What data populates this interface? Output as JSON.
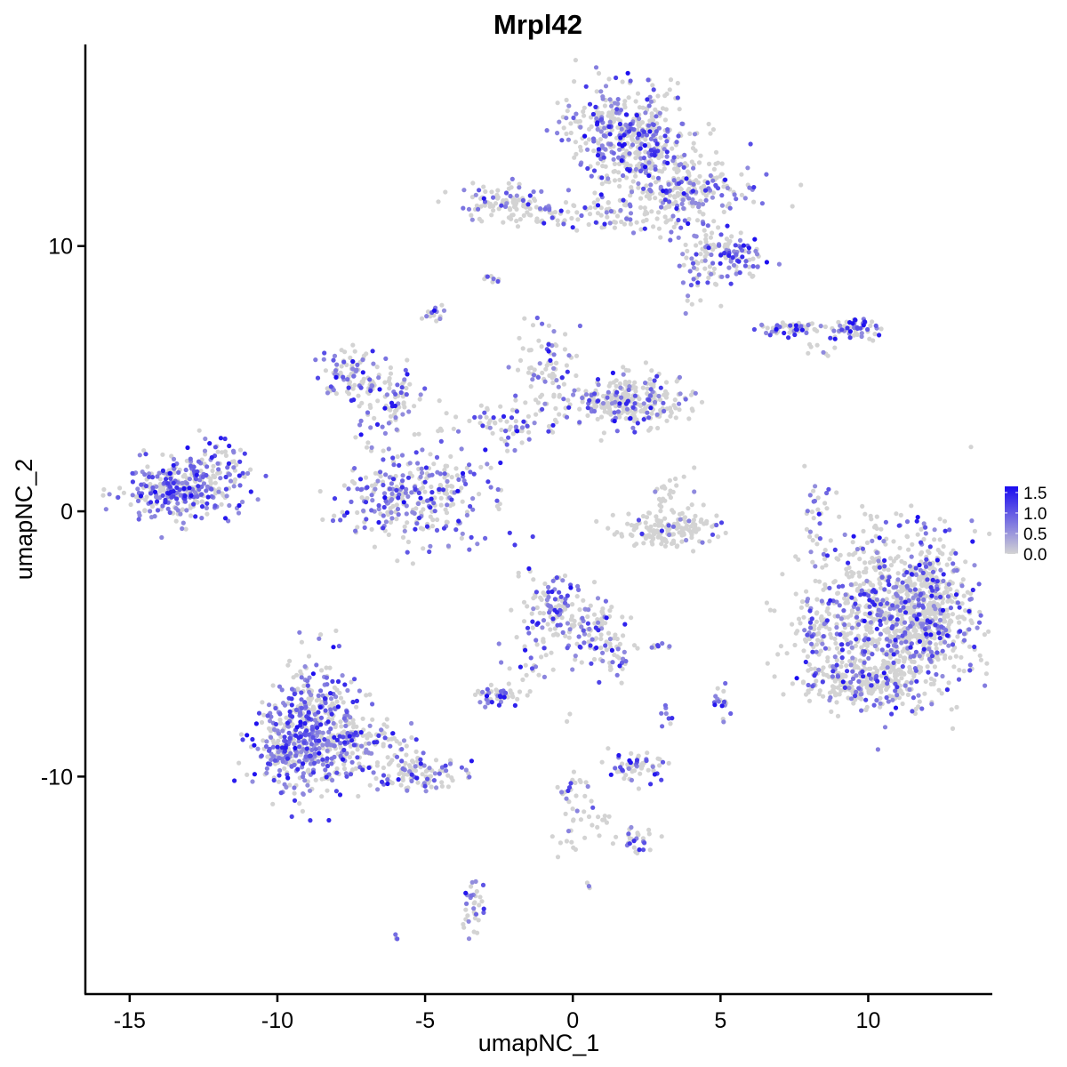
{
  "chart_data": {
    "type": "scatter",
    "title": "Mrpl42",
    "xlabel": "umapNC_1",
    "ylabel": "umapNC_2",
    "xlim": [
      -16.5,
      14.2
    ],
    "ylim": [
      -18.2,
      17.6
    ],
    "x_ticks": [
      -15,
      -10,
      -5,
      0,
      5,
      10
    ],
    "y_ticks": [
      -10,
      0,
      10
    ],
    "grid": false,
    "legend": {
      "placement": "right",
      "ticks": [
        "1.5",
        "1.0",
        "0.5",
        "0.0"
      ],
      "range": [
        0,
        1.65
      ],
      "low_color": "#d3d3d3",
      "high_color": "#1a0bf0"
    },
    "point_color_low": "#d3d3d3",
    "point_color_high": "#1a0bf0",
    "clusters": [
      {
        "cx": -13.3,
        "cy": 0.8,
        "sx": 1.0,
        "sy": 0.55,
        "n": 320,
        "expr": 0.55
      },
      {
        "cx": -11.9,
        "cy": 1.8,
        "sx": 0.5,
        "sy": 0.5,
        "n": 50,
        "expr": 0.45
      },
      {
        "cx": -8.8,
        "cy": -8.2,
        "sx": 0.8,
        "sy": 1.3,
        "n": 420,
        "expr": 0.55
      },
      {
        "cx": -9.7,
        "cy": -8.8,
        "sx": 0.6,
        "sy": 0.6,
        "n": 160,
        "expr": 0.6
      },
      {
        "cx": -7.2,
        "cy": -8.7,
        "sx": 0.9,
        "sy": 0.5,
        "n": 110,
        "expr": 0.4
      },
      {
        "cx": -5.3,
        "cy": -9.9,
        "sx": 0.8,
        "sy": 0.35,
        "n": 110,
        "expr": 0.35
      },
      {
        "cx": -7.5,
        "cy": 5.2,
        "sx": 0.5,
        "sy": 0.5,
        "n": 90,
        "expr": 0.55
      },
      {
        "cx": -6.2,
        "cy": 4.3,
        "sx": 0.7,
        "sy": 0.7,
        "n": 80,
        "expr": 0.4
      },
      {
        "cx": -5.5,
        "cy": 0.6,
        "sx": 1.3,
        "sy": 0.9,
        "n": 330,
        "expr": 0.45
      },
      {
        "cx": -1.0,
        "cy": 5.5,
        "sx": 0.5,
        "sy": 0.7,
        "n": 70,
        "expr": 0.45
      },
      {
        "cx": -1.8,
        "cy": 3.4,
        "sx": 1.0,
        "sy": 0.4,
        "n": 80,
        "expr": 0.35
      },
      {
        "cx": 1.3,
        "cy": 4.2,
        "sx": 1.2,
        "sy": 0.35,
        "n": 110,
        "expr": 0.25
      },
      {
        "cx": 2.1,
        "cy": 4.2,
        "sx": 0.8,
        "sy": 0.5,
        "n": 170,
        "expr": 0.3
      },
      {
        "cx": -4.7,
        "cy": 7.4,
        "sx": 0.15,
        "sy": 0.2,
        "n": 14,
        "expr": 0.5
      },
      {
        "cx": -2.7,
        "cy": 8.8,
        "sx": 0.15,
        "sy": 0.1,
        "n": 8,
        "expr": 0.4
      },
      {
        "cx": -2.2,
        "cy": 11.6,
        "sx": 0.8,
        "sy": 0.4,
        "n": 110,
        "expr": 0.3
      },
      {
        "cx": 1.1,
        "cy": 11.2,
        "sx": 1.0,
        "sy": 0.3,
        "n": 80,
        "expr": 0.25
      },
      {
        "cx": 1.3,
        "cy": 14.5,
        "sx": 0.9,
        "sy": 0.8,
        "n": 240,
        "expr": 0.4
      },
      {
        "cx": 2.4,
        "cy": 13.6,
        "sx": 0.9,
        "sy": 0.9,
        "n": 250,
        "expr": 0.35
      },
      {
        "cx": 3.8,
        "cy": 12.1,
        "sx": 1.1,
        "sy": 0.6,
        "n": 200,
        "expr": 0.4
      },
      {
        "cx": 5.5,
        "cy": 9.6,
        "sx": 0.45,
        "sy": 0.5,
        "n": 90,
        "expr": 0.5
      },
      {
        "cx": 4.3,
        "cy": 9.6,
        "sx": 0.4,
        "sy": 0.9,
        "n": 70,
        "expr": 0.3
      },
      {
        "cx": 7.5,
        "cy": 6.9,
        "sx": 0.6,
        "sy": 0.12,
        "n": 60,
        "expr": 0.55
      },
      {
        "cx": 9.5,
        "cy": 6.9,
        "sx": 0.45,
        "sy": 0.2,
        "n": 55,
        "expr": 0.5
      },
      {
        "cx": 8.5,
        "cy": 6.0,
        "sx": 0.3,
        "sy": 0.2,
        "n": 8,
        "expr": 0.4
      },
      {
        "cx": 3.3,
        "cy": -0.7,
        "sx": 0.9,
        "sy": 0.35,
        "n": 150,
        "expr": 0.05
      },
      {
        "cx": 3.2,
        "cy": 0.5,
        "sx": 0.4,
        "sy": 0.6,
        "n": 30,
        "expr": 0.1
      },
      {
        "cx": 8.2,
        "cy": 0.0,
        "sx": 0.25,
        "sy": 0.7,
        "n": 30,
        "expr": 0.5
      },
      {
        "cx": 10.8,
        "cy": -4.0,
        "sx": 1.4,
        "sy": 1.5,
        "n": 950,
        "expr": 0.3
      },
      {
        "cx": 12.0,
        "cy": -3.5,
        "sx": 0.6,
        "sy": 1.1,
        "n": 250,
        "expr": 0.2
      },
      {
        "cx": 9.8,
        "cy": -6.5,
        "sx": 1.0,
        "sy": 0.35,
        "n": 200,
        "expr": 0.2
      },
      {
        "cx": 8.2,
        "cy": -4.8,
        "sx": 0.4,
        "sy": 0.6,
        "n": 45,
        "expr": 0.3
      },
      {
        "cx": -0.8,
        "cy": -3.8,
        "sx": 0.5,
        "sy": 0.7,
        "n": 110,
        "expr": 0.45
      },
      {
        "cx": 0.7,
        "cy": -4.3,
        "sx": 0.6,
        "sy": 0.7,
        "n": 90,
        "expr": 0.3
      },
      {
        "cx": 1.3,
        "cy": -5.6,
        "sx": 0.3,
        "sy": 0.4,
        "n": 30,
        "expr": 0.45
      },
      {
        "cx": -2.5,
        "cy": -6.9,
        "sx": 0.4,
        "sy": 0.2,
        "n": 45,
        "expr": 0.5
      },
      {
        "cx": -1.5,
        "cy": -5.9,
        "sx": 0.4,
        "sy": 0.6,
        "n": 25,
        "expr": 0.4
      },
      {
        "cx": 2.2,
        "cy": -9.6,
        "sx": 0.5,
        "sy": 0.3,
        "n": 55,
        "expr": 0.3
      },
      {
        "cx": 2.9,
        "cy": -5.1,
        "sx": 0.3,
        "sy": 0.1,
        "n": 10,
        "expr": 0.5
      },
      {
        "cx": 3.2,
        "cy": -7.7,
        "sx": 0.15,
        "sy": 0.3,
        "n": 8,
        "expr": 0.5
      },
      {
        "cx": 5.0,
        "cy": -7.3,
        "sx": 0.2,
        "sy": 0.3,
        "n": 18,
        "expr": 0.5
      },
      {
        "cx": 0.0,
        "cy": -10.9,
        "sx": 0.3,
        "sy": 1.2,
        "n": 40,
        "expr": 0.25
      },
      {
        "cx": 2.2,
        "cy": -12.4,
        "sx": 0.4,
        "sy": 0.25,
        "n": 30,
        "expr": 0.35
      },
      {
        "cx": 0.7,
        "cy": -11.6,
        "sx": 0.4,
        "sy": 0.3,
        "n": 12,
        "expr": 0.2
      },
      {
        "cx": -3.4,
        "cy": -14.8,
        "sx": 0.2,
        "sy": 0.6,
        "n": 35,
        "expr": 0.5
      },
      {
        "cx": -6.0,
        "cy": -16.0,
        "sx": 0.08,
        "sy": 0.08,
        "n": 3,
        "expr": 0.6
      },
      {
        "cx": 0.6,
        "cy": -14.2,
        "sx": 0.08,
        "sy": 0.08,
        "n": 3,
        "expr": 0.6
      }
    ]
  }
}
